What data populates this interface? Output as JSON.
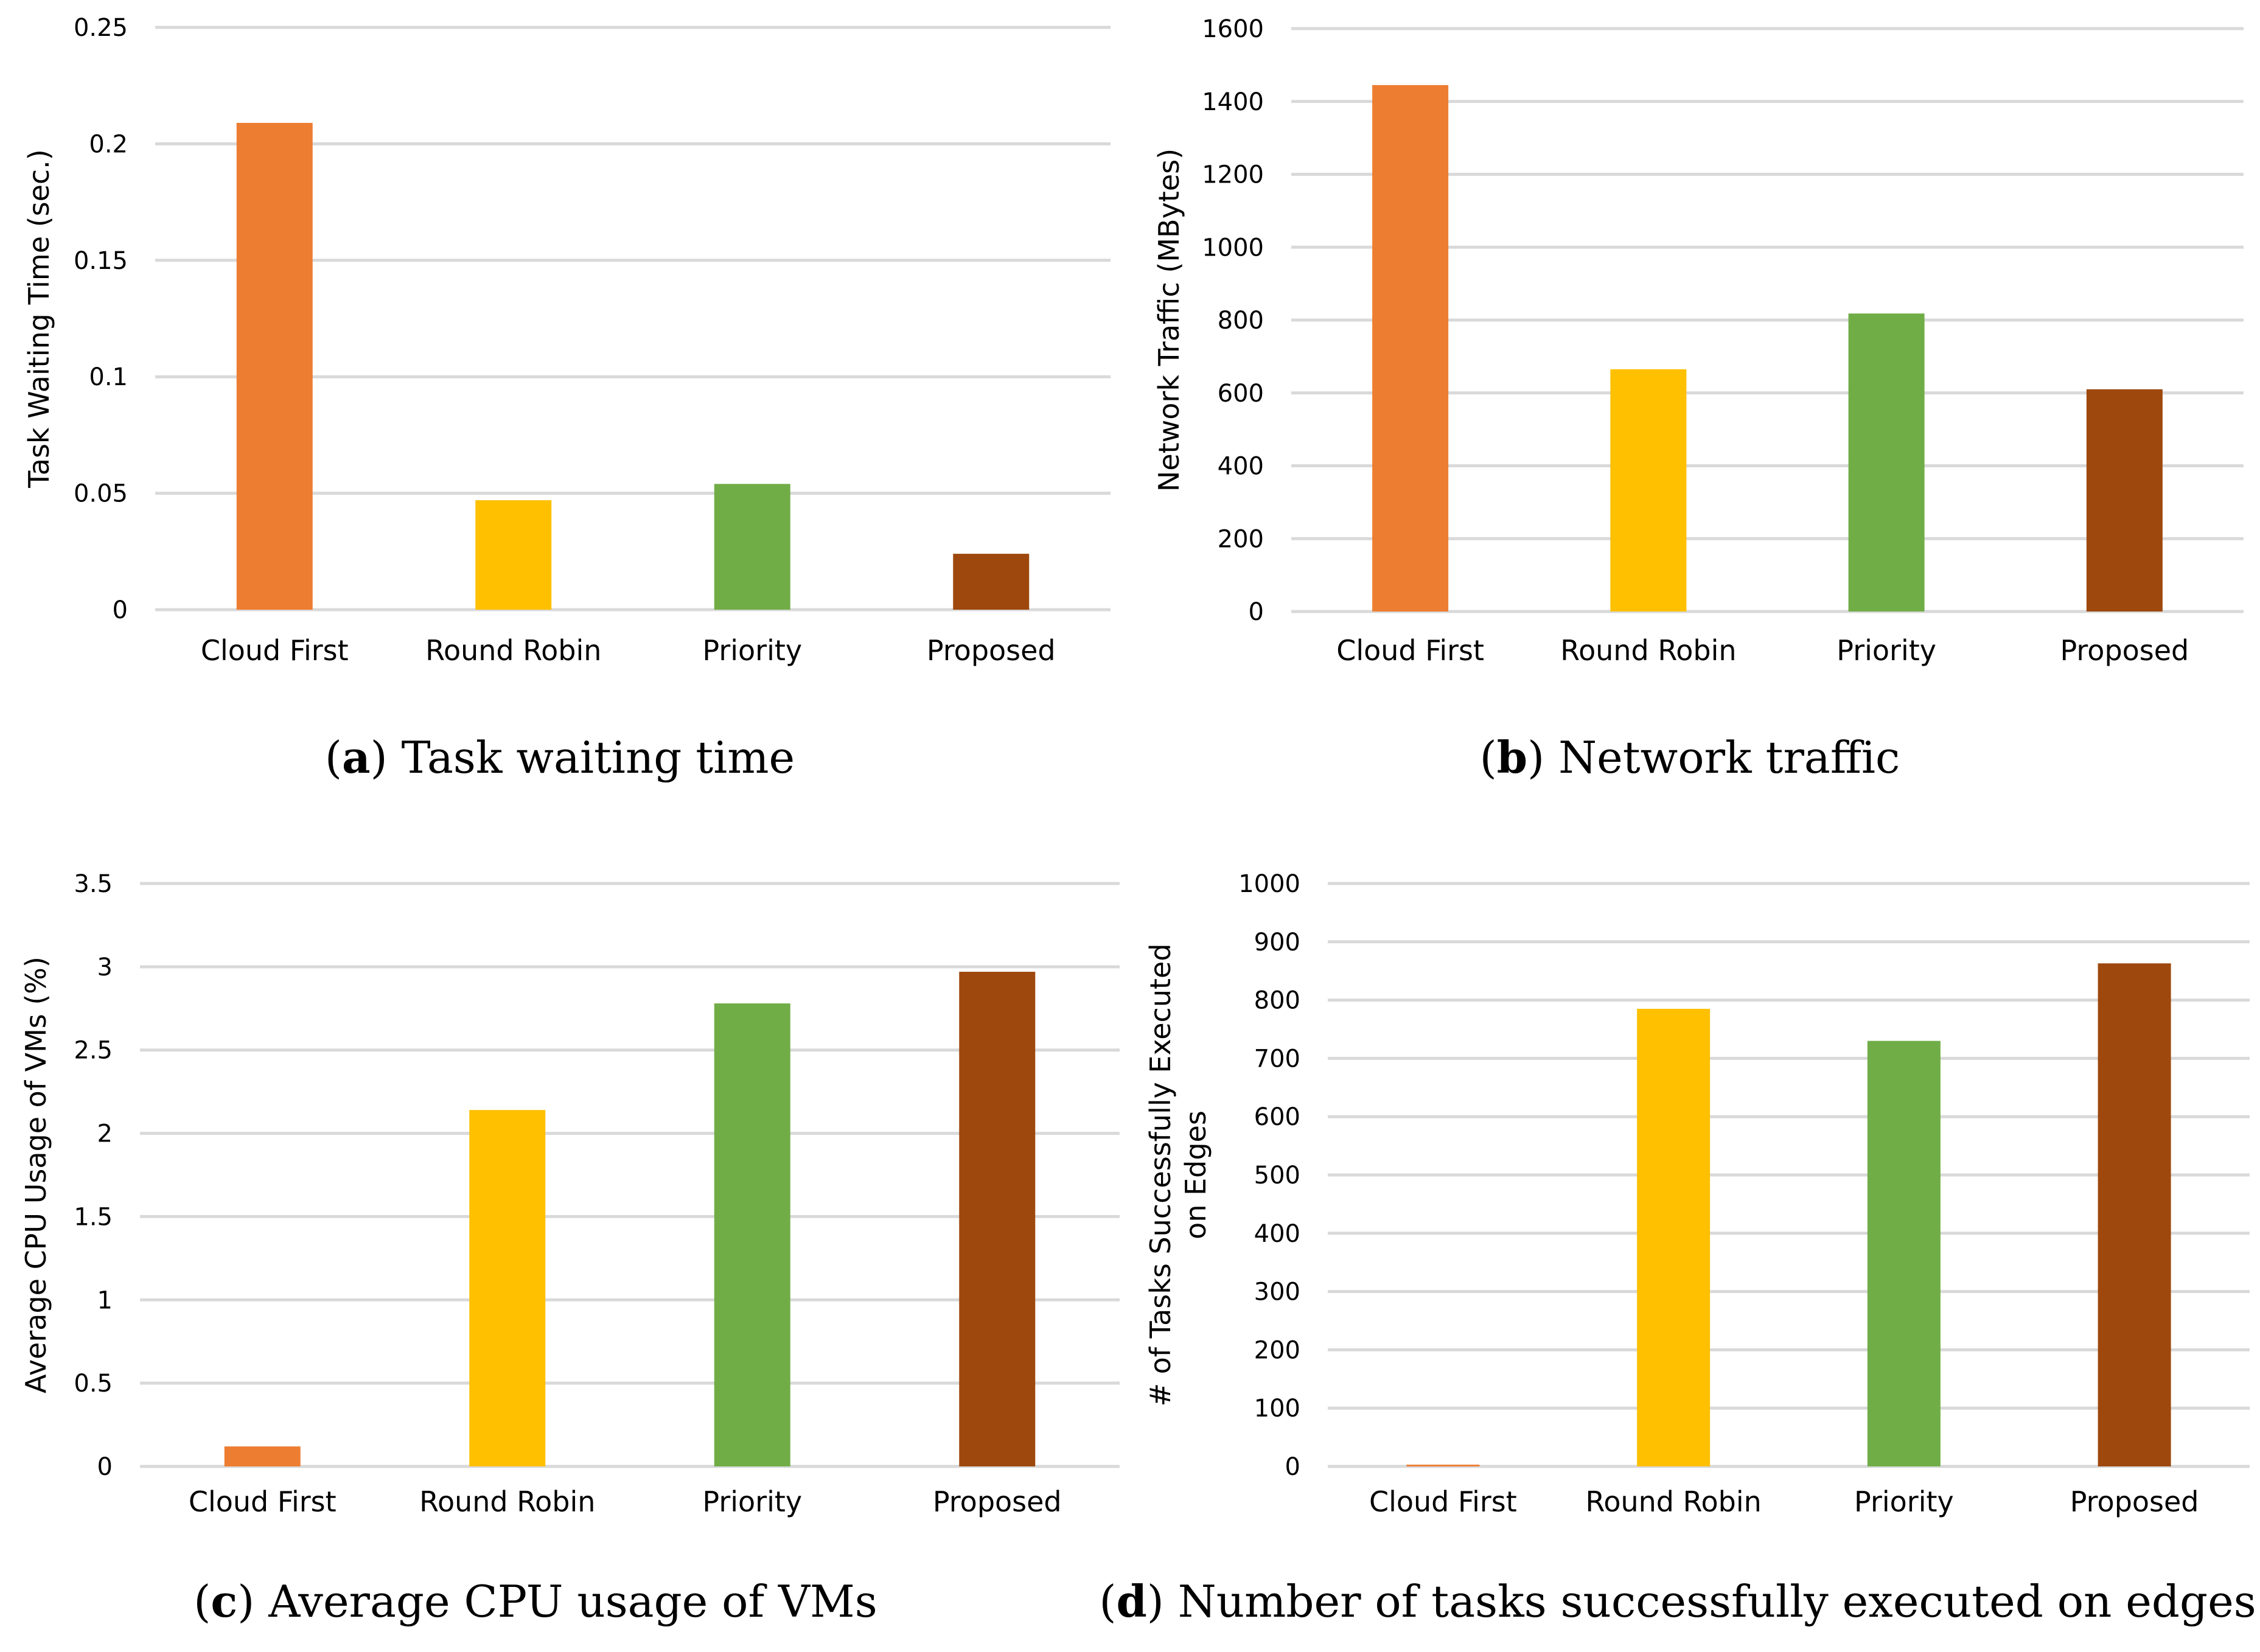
{
  "chart_data": [
    {
      "type": "bar",
      "panel_letter": "a",
      "caption": "Task waiting time",
      "ylabel": "Task Waiting Time (sec.)",
      "ylim": [
        0,
        0.25
      ],
      "yticks": [
        0,
        0.05,
        0.1,
        0.15,
        0.2,
        0.25
      ],
      "ytick_labels": [
        "0",
        "0.05",
        "0.1",
        "0.15",
        "0.2",
        "0.25"
      ],
      "categories": [
        "Cloud First",
        "Round Robin",
        "Priority",
        "Proposed"
      ],
      "values": [
        0.209,
        0.047,
        0.054,
        0.024
      ],
      "colors": [
        "#ed7d31",
        "#ffc000",
        "#70ad47",
        "#9e480e"
      ],
      "grid": true,
      "legend": "none"
    },
    {
      "type": "bar",
      "panel_letter": "b",
      "caption": "Network traffic",
      "ylabel": "Network Traffic (MBytes)",
      "ylim": [
        0,
        1600
      ],
      "yticks": [
        0,
        200,
        400,
        600,
        800,
        1000,
        1200,
        1400,
        1600
      ],
      "ytick_labels": [
        "0",
        "200",
        "400",
        "600",
        "800",
        "1000",
        "1200",
        "1400",
        "1600"
      ],
      "categories": [
        "Cloud First",
        "Round Robin",
        "Priority",
        "Proposed"
      ],
      "values": [
        1445,
        665,
        818,
        610
      ],
      "colors": [
        "#ed7d31",
        "#ffc000",
        "#70ad47",
        "#9e480e"
      ],
      "grid": true,
      "legend": "none"
    },
    {
      "type": "bar",
      "panel_letter": "c",
      "caption": "Average CPU usage of VMs",
      "ylabel": "Average CPU Usage of VMs (%)",
      "ylim": [
        0,
        3.5
      ],
      "yticks": [
        0,
        0.5,
        1,
        1.5,
        2,
        2.5,
        3,
        3.5
      ],
      "ytick_labels": [
        "0",
        "0.5",
        "1",
        "1.5",
        "2",
        "2.5",
        "3",
        "3.5"
      ],
      "categories": [
        "Cloud First",
        "Round Robin",
        "Priority",
        "Proposed"
      ],
      "values": [
        0.12,
        2.14,
        2.78,
        2.97
      ],
      "colors": [
        "#ed7d31",
        "#ffc000",
        "#70ad47",
        "#9e480e"
      ],
      "grid": true,
      "legend": "none"
    },
    {
      "type": "bar",
      "panel_letter": "d",
      "caption": "Number of tasks successfully executed on edges",
      "ylabel": "# of Tasks Successfully Executed on Edges",
      "ylabel_lines": [
        "# of Tasks Successfully Executed",
        "on Edges"
      ],
      "ylim": [
        0,
        1000
      ],
      "yticks": [
        0,
        100,
        200,
        300,
        400,
        500,
        600,
        700,
        800,
        900,
        1000
      ],
      "ytick_labels": [
        "0",
        "100",
        "200",
        "300",
        "400",
        "500",
        "600",
        "700",
        "800",
        "900",
        "1000"
      ],
      "categories": [
        "Cloud First",
        "Round Robin",
        "Priority",
        "Proposed"
      ],
      "values": [
        3,
        785,
        730,
        863
      ],
      "colors": [
        "#ed7d31",
        "#ffc000",
        "#70ad47",
        "#9e480e"
      ],
      "grid": true,
      "legend": "none"
    }
  ]
}
